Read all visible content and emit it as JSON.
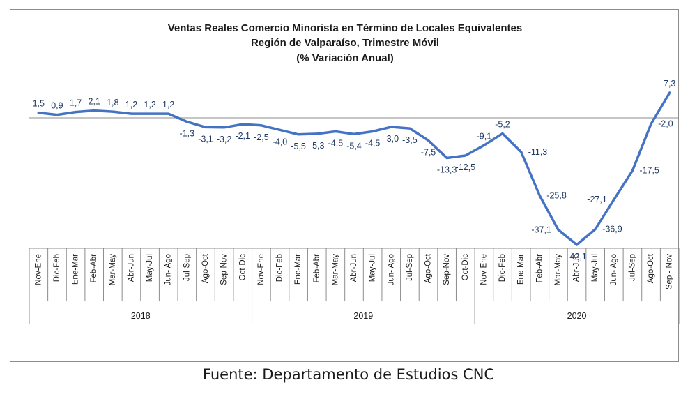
{
  "chart_data": {
    "type": "line",
    "title_lines": [
      "Ventas Reales Comercio Minorista  en Término de Locales Equivalentes",
      "Región de Valparaíso, Trimestre Móvil",
      "(% Variación Anual)"
    ],
    "categories": [
      "Nov-Ene",
      "Dic-Feb",
      "Ene-Mar",
      "Feb-Abr",
      "Mar-May",
      "Abr-Jun",
      "May-Jul",
      "Jun- Ago",
      "Jul-Sep",
      "Ago-Oct",
      "Sep-Nov",
      "Oct-Dic",
      "Nov-Ene",
      "Dic-Feb",
      "Ene-Mar",
      "Feb-Abr",
      "Mar-May",
      "Abr-Jun",
      "May-Jul",
      "Jun- Ago",
      "Jul-Sep",
      "Ago-Oct",
      "Sep-Nov",
      "Oct-Dic",
      "Nov-Ene",
      "Dic-Feb",
      "Ene-Mar",
      "Feb-Abr",
      "Mar-May",
      "Abr-Jun",
      "May-Jul",
      "Jun- Ago",
      "Jul-Sep",
      "Ago-Oct",
      "Sep - Nov"
    ],
    "groups": [
      {
        "label": "2018",
        "count": 12
      },
      {
        "label": "2019",
        "count": 12
      },
      {
        "label": "2020",
        "count": 11
      }
    ],
    "values": [
      1.5,
      0.9,
      1.7,
      2.1,
      1.8,
      1.2,
      1.2,
      1.2,
      -1.3,
      -3.1,
      -3.2,
      -2.1,
      -2.5,
      -4.0,
      -5.5,
      -5.3,
      -4.5,
      -5.4,
      -4.5,
      -3.0,
      -3.5,
      -7.5,
      -13.3,
      -12.5,
      -9.1,
      -5.2,
      -11.3,
      -25.8,
      -37.1,
      -42.1,
      -36.9,
      -27.1,
      -17.5,
      -2.0,
      7.3
    ],
    "value_labels": [
      "1,5",
      "0,9",
      "1,7",
      "2,1",
      "1,8",
      "1,2",
      "1,2",
      "1,2",
      "-1,3",
      "-3,1",
      "-3,2",
      "-2,1",
      "-2,5",
      "-4,0",
      "-5,5",
      "-5,3",
      "-4,5",
      "-5,4",
      "-4,5",
      "-3,0",
      "-3,5",
      "-7,5",
      "-13,3",
      "-12,5",
      "-9,1",
      "-5,2",
      "-11,3",
      "-25,8",
      "-37,1",
      "-42,1",
      "-36,9",
      "-27,1",
      "-17,5",
      "-2,0",
      "7,3"
    ],
    "label_position": [
      "above",
      "above",
      "above",
      "above",
      "above",
      "above",
      "above",
      "above",
      "below",
      "below",
      "below",
      "below",
      "below",
      "below",
      "below",
      "below",
      "below",
      "below",
      "below",
      "below",
      "below",
      "below",
      "below",
      "below",
      "above",
      "above",
      "right",
      "right",
      "left",
      "below",
      "right",
      "left",
      "right",
      "right",
      "above"
    ],
    "ylim": [
      -42.1,
      7.3
    ],
    "line_color": "#4472c4",
    "grid": false,
    "legend": "none"
  },
  "source_note": "Fuente: Departamento de Estudios CNC"
}
